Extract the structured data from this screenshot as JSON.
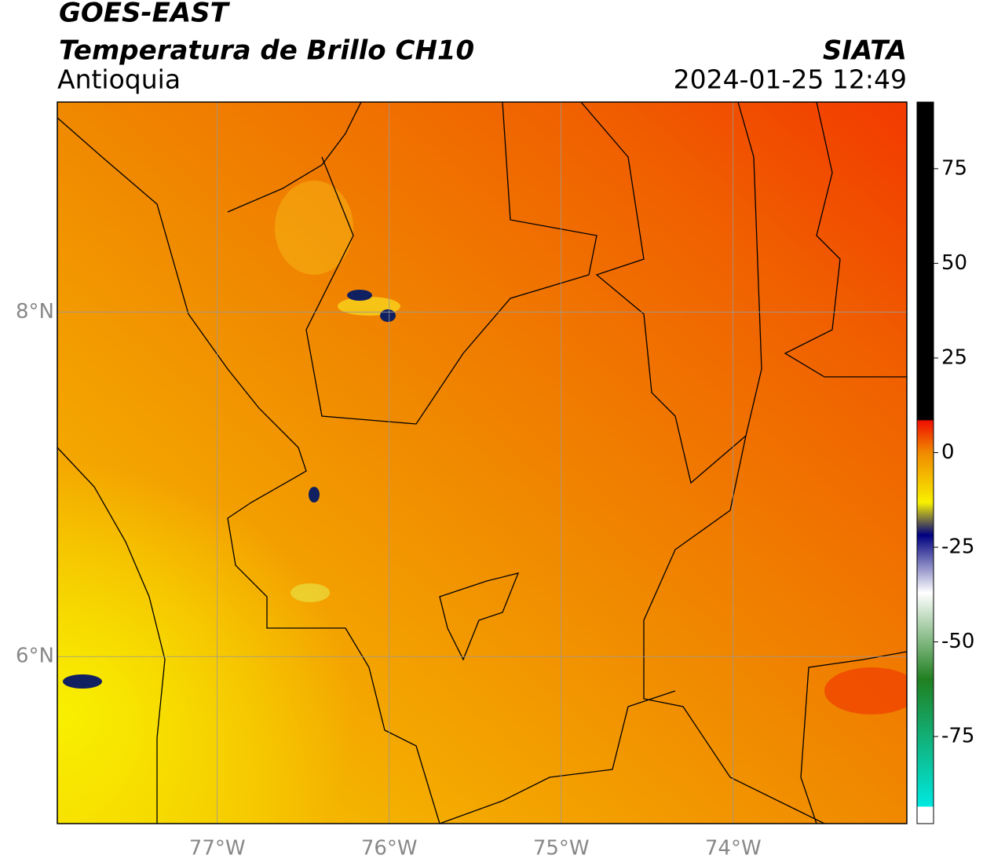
{
  "header": {
    "title": "GOES-EAST",
    "subtitle": "Temperatura de Brillo CH10",
    "region": "Antioquia",
    "source": "SIATA",
    "datetime": "2024-01-25 12:49"
  },
  "map": {
    "xlim": [
      -77.93,
      -72.99
    ],
    "ylim": [
      5.03,
      9.22
    ],
    "xticks": [
      {
        "value": -77,
        "label": "77°W"
      },
      {
        "value": -76,
        "label": "76°W"
      },
      {
        "value": -75,
        "label": "75°W"
      },
      {
        "value": -74,
        "label": "74°W"
      }
    ],
    "yticks": [
      {
        "value": 8,
        "label": "8°N"
      },
      {
        "value": 6,
        "label": "6°N"
      }
    ]
  },
  "colorbar": {
    "lim": [
      -98,
      92.6
    ],
    "ticks": [
      75,
      50,
      25,
      0,
      -25,
      -50,
      -75
    ]
  }
}
